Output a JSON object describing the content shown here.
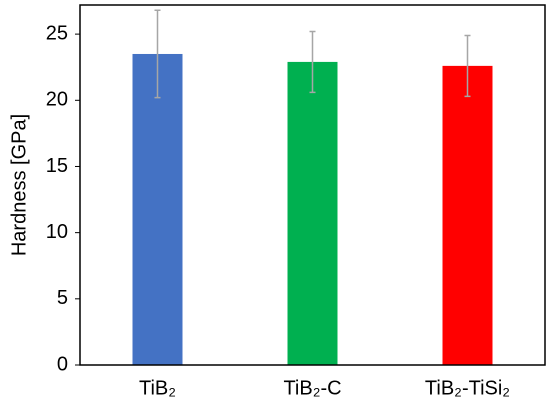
{
  "chart_data": {
    "type": "bar",
    "y_label": "Hardness [GPa]",
    "categories": [
      "TiB₂",
      "TiB₂-C",
      "TiB₂-TiSi₂"
    ],
    "values": [
      23.5,
      22.9,
      22.6
    ],
    "errors": [
      3.3,
      2.3,
      2.3
    ],
    "colors": [
      "#4472c4",
      "#00b050",
      "#ff0000"
    ],
    "error_color": "#a6a6a6",
    "ylim": [
      0,
      27.2
    ],
    "yticks": [
      0,
      5,
      10,
      15,
      20,
      25
    ],
    "grid": false
  }
}
